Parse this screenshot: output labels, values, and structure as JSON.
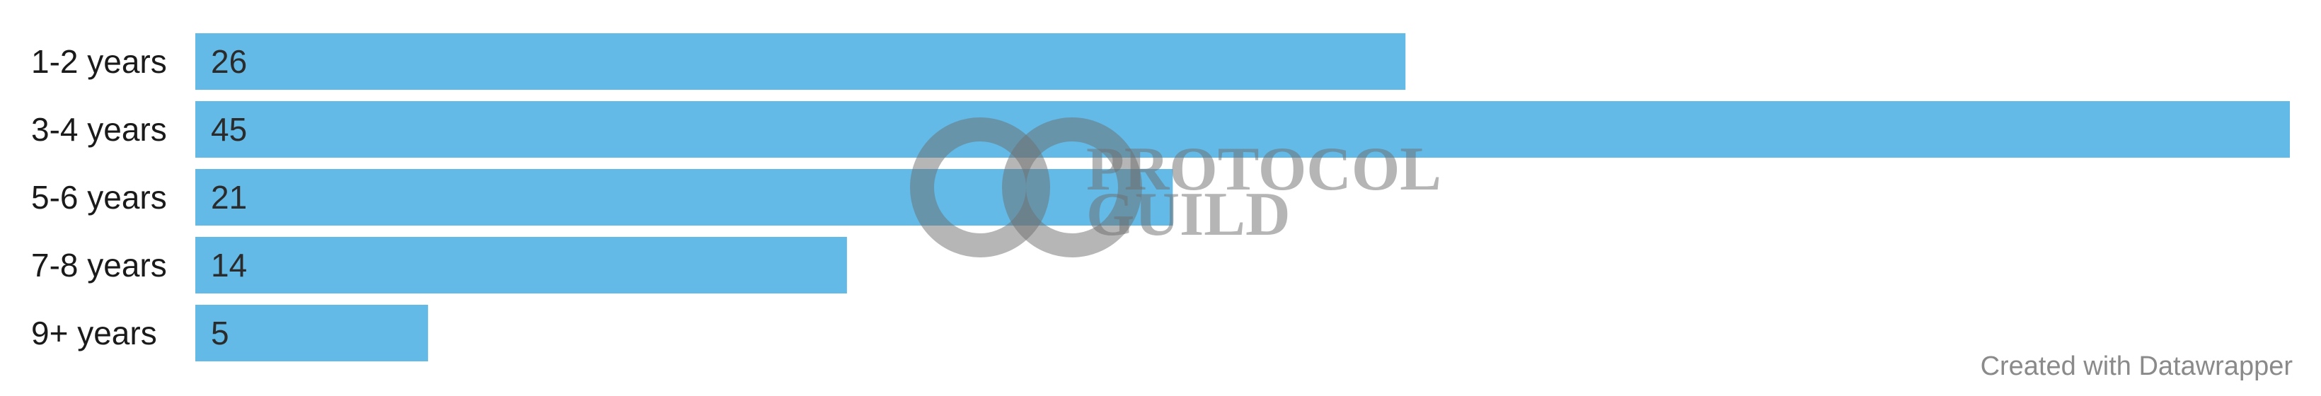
{
  "chart_data": {
    "type": "bar",
    "orientation": "horizontal",
    "categories": [
      "1-2 years",
      "3-4 years",
      "5-6 years",
      "7-8 years",
      "9+ years"
    ],
    "values": [
      26,
      45,
      21,
      14,
      5
    ],
    "value_labels": [
      "26",
      "45",
      "21",
      "14",
      "5"
    ],
    "xlim": [
      0,
      45
    ],
    "bar_color": "#63bae7",
    "grid": false,
    "legend": "none"
  },
  "watermark": {
    "line1": "PROTOCOL",
    "line2": "GUILD",
    "color": "#6d6d6d"
  },
  "credit": "Created with Datawrapper"
}
